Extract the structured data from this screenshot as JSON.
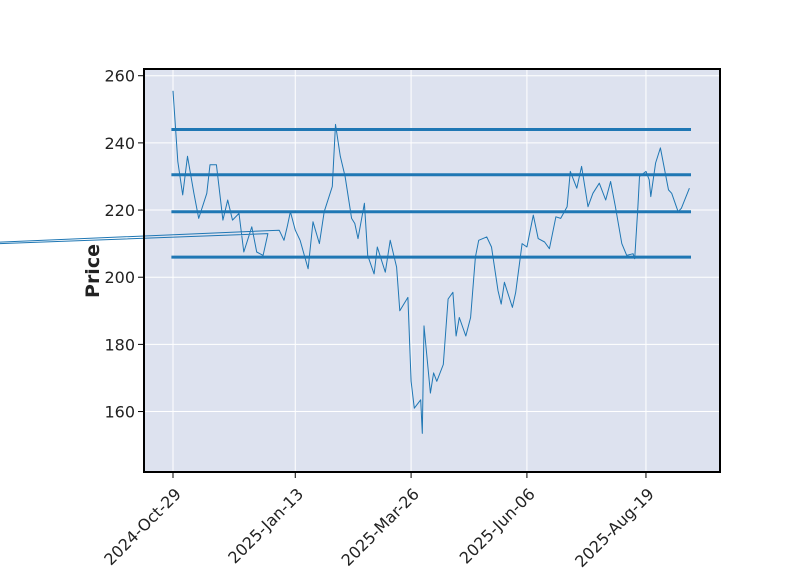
{
  "chart_data": {
    "type": "line",
    "title": "",
    "xlabel": "",
    "ylabel": "Price",
    "ylim": [
      142,
      262
    ],
    "y_ticks": [
      160,
      180,
      200,
      220,
      240,
      260
    ],
    "x_ticks": [
      "2024-Oct-29",
      "2025-Jan-13",
      "2025-Mar-26",
      "2025-Jun-06",
      "2025-Aug-19"
    ],
    "x_range": [
      "2024-Oct-29",
      "2025-Sep-16"
    ],
    "grid": true,
    "legend": "none",
    "colors": {
      "background": "#dde2ef",
      "grid": "#ffffff",
      "line": "#1f77b4"
    },
    "series": [
      {
        "values": [
          [
            "2024-Oct-29",
            255.5
          ],
          [
            "2024-Nov-01",
            234.5
          ],
          [
            "2024-Nov-04",
            224.5
          ],
          [
            "2024-Nov-07",
            236.0
          ],
          [
            "2024-Nov-11",
            225.0
          ],
          [
            "2024-Nov-14",
            217.5
          ],
          [
            "2024-Nov-19",
            225.0
          ],
          [
            "2024-Nov-21",
            233.5
          ],
          [
            "2024-Nov-25",
            233.5
          ],
          [
            "2024-Nov-29",
            217.0
          ],
          [
            "2024-Dec-02",
            223.0
          ],
          [
            "2024-Dec-05",
            217.0
          ],
          [
            "2024-Dec-09",
            219.0
          ],
          [
            "2024-Dec-12",
            207.5
          ],
          [
            "2024-Dec-17",
            215.0
          ],
          [
            "2024-Dec-20",
            207.5
          ],
          [
            "2024-Dec-24",
            206.5
          ],
          [
            "2024-Dec-27",
            213.0
          ],
          [
            "2024-Jan-02",
            206.5
          ],
          [
            "2025-Jan-03",
            214.0
          ],
          [
            "2025-Jan-06",
            211.0
          ],
          [
            "2025-Jan-08",
            215.0
          ],
          [
            "2025-Jan-10",
            219.5
          ],
          [
            "2025-Jan-13",
            214.0
          ],
          [
            "2025-Jan-16",
            211.0
          ],
          [
            "2025-Jan-21",
            202.5
          ],
          [
            "2025-Jan-24",
            216.5
          ],
          [
            "2025-Jan-28",
            210.0
          ],
          [
            "2025-Jan-31",
            219.5
          ],
          [
            "2025-Feb-05",
            227.0
          ],
          [
            "2025-Feb-07",
            245.5
          ],
          [
            "2025-Feb-10",
            236.0
          ],
          [
            "2025-Feb-13",
            230.0
          ],
          [
            "2025-Feb-17",
            217.5
          ],
          [
            "2025-Feb-19",
            216.0
          ],
          [
            "2025-Feb-21",
            211.5
          ],
          [
            "2025-Feb-25",
            222.0
          ],
          [
            "2025-Feb-27",
            206.5
          ],
          [
            "2025-Mar-03",
            201.0
          ],
          [
            "2025-Mar-05",
            209.0
          ],
          [
            "2025-Mar-10",
            201.5
          ],
          [
            "2025-Mar-13",
            211.0
          ],
          [
            "2025-Mar-17",
            203.0
          ],
          [
            "2025-Mar-19",
            190.0
          ],
          [
            "2025-Mar-24",
            194.0
          ],
          [
            "2025-Mar-26",
            169.0
          ],
          [
            "2025-Mar-28",
            161.0
          ],
          [
            "2025-Apr-01",
            163.5
          ],
          [
            "2025-Apr-02",
            153.5
          ],
          [
            "2025-Apr-03",
            185.5
          ],
          [
            "2025-Apr-07",
            165.5
          ],
          [
            "2025-Apr-09",
            171.5
          ],
          [
            "2025-Apr-11",
            169.0
          ],
          [
            "2025-Apr-15",
            174.0
          ],
          [
            "2025-Apr-18",
            193.5
          ],
          [
            "2025-Apr-21",
            195.5
          ],
          [
            "2025-Apr-23",
            182.5
          ],
          [
            "2025-Apr-25",
            188.0
          ],
          [
            "2025-Apr-29",
            182.5
          ],
          [
            "2025-May-02",
            188.0
          ],
          [
            "2025-May-05",
            206.0
          ],
          [
            "2025-May-07",
            211.0
          ],
          [
            "2025-May-12",
            212.0
          ],
          [
            "2025-May-15",
            209.0
          ],
          [
            "2025-May-19",
            196.0
          ],
          [
            "2025-May-21",
            192.0
          ],
          [
            "2025-May-23",
            198.5
          ],
          [
            "2025-May-28",
            191.0
          ],
          [
            "2025-May-30",
            195.5
          ],
          [
            "2025-Jun-03",
            210.0
          ],
          [
            "2025-Jun-06",
            209.0
          ],
          [
            "2025-Jun-10",
            218.5
          ],
          [
            "2025-Jun-13",
            211.5
          ],
          [
            "2025-Jun-17",
            210.5
          ],
          [
            "2025-Jun-20",
            208.5
          ],
          [
            "2025-Jun-24",
            218.0
          ],
          [
            "2025-Jun-27",
            217.5
          ],
          [
            "2025-Jul-01",
            221.0
          ],
          [
            "2025-Jul-03",
            231.5
          ],
          [
            "2025-Jul-07",
            226.5
          ],
          [
            "2025-Jul-10",
            233.0
          ],
          [
            "2025-Jul-14",
            221.0
          ],
          [
            "2025-Jul-17",
            225.0
          ],
          [
            "2025-Jul-21",
            228.0
          ],
          [
            "2025-Jul-25",
            223.0
          ],
          [
            "2025-Jul-28",
            228.5
          ],
          [
            "2025-Jul-31",
            221.0
          ],
          [
            "2025-Aug-04",
            210.0
          ],
          [
            "2025-Aug-07",
            206.5
          ],
          [
            "2025-Aug-11",
            207.0
          ],
          [
            "2025-Aug-12",
            205.5
          ],
          [
            "2025-Aug-14",
            221.0
          ],
          [
            "2025-Aug-15",
            230.0
          ],
          [
            "2025-Aug-19",
            231.5
          ],
          [
            "2025-Aug-21",
            229.0
          ],
          [
            "2025-Aug-22",
            224.0
          ],
          [
            "2025-Aug-25",
            234.0
          ],
          [
            "2025-Aug-28",
            238.5
          ],
          [
            "2025-Sep-02",
            226.0
          ],
          [
            "2025-Sep-04",
            225.0
          ],
          [
            "2025-Sep-08",
            219.5
          ],
          [
            "2025-Sep-10",
            220.5
          ],
          [
            "2025-Sep-15",
            226.5
          ]
        ]
      }
    ],
    "horizontal_lines": [
      244.0,
      230.5,
      219.5,
      206.0
    ],
    "hline_x_range": [
      "2024-Oct-28",
      "2025-Sep-16"
    ]
  }
}
